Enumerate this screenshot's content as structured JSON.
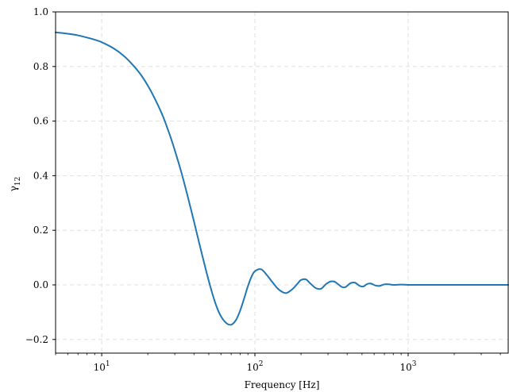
{
  "chart_data": {
    "type": "line",
    "title": "",
    "xlabel": "Frequency [Hz]",
    "ylabel_main": "γ",
    "ylabel_sub": "12",
    "xscale": "log",
    "xlim": [
      5,
      4500
    ],
    "ylim": [
      -0.25,
      1.0
    ],
    "grid": true,
    "legend": "none",
    "y_ticks": [
      -0.2,
      0.0,
      0.2,
      0.4,
      0.6,
      0.8,
      1.0
    ],
    "y_tick_labels": [
      "−0.2",
      "0.0",
      "0.2",
      "0.4",
      "0.6",
      "0.8",
      "1.0"
    ],
    "x_major_ticks": [
      10,
      100,
      1000
    ],
    "x_tick_labels": [
      {
        "base": "10",
        "exp": "1"
      },
      {
        "base": "10",
        "exp": "2"
      },
      {
        "base": "10",
        "exp": "3"
      }
    ],
    "series": [
      {
        "color": "#1f77b4",
        "x": [
          5,
          6,
          7,
          8,
          9,
          10,
          12,
          14,
          16,
          18,
          20,
          22,
          25,
          28,
          30,
          33,
          36,
          40,
          44,
          48,
          52,
          56,
          60,
          65,
          70,
          75,
          80,
          85,
          90,
          95,
          100,
          110,
          120,
          130,
          140,
          150,
          160,
          170,
          180,
          190,
          200,
          215,
          230,
          250,
          270,
          290,
          310,
          330,
          350,
          370,
          390,
          420,
          450,
          480,
          510,
          540,
          570,
          610,
          650,
          700,
          750,
          800,
          900,
          1000,
          1200,
          1500,
          2000,
          3000,
          4500
        ],
        "y": [
          0.925,
          0.92,
          0.914,
          0.906,
          0.898,
          0.889,
          0.866,
          0.838,
          0.805,
          0.77,
          0.73,
          0.687,
          0.62,
          0.545,
          0.493,
          0.415,
          0.335,
          0.233,
          0.137,
          0.052,
          -0.02,
          -0.077,
          -0.115,
          -0.14,
          -0.146,
          -0.13,
          -0.095,
          -0.05,
          -0.005,
          0.03,
          0.05,
          0.057,
          0.035,
          0.01,
          -0.012,
          -0.025,
          -0.03,
          -0.022,
          -0.01,
          0.005,
          0.018,
          0.02,
          0.005,
          -0.012,
          -0.014,
          0.002,
          0.012,
          0.012,
          0.002,
          -0.008,
          -0.008,
          0.006,
          0.008,
          -0.003,
          -0.006,
          0.003,
          0.005,
          -0.002,
          -0.004,
          0.002,
          0.002,
          0.0,
          0.001,
          0.0,
          0.0,
          0.0,
          0.0,
          0.0,
          0.0
        ]
      }
    ]
  }
}
